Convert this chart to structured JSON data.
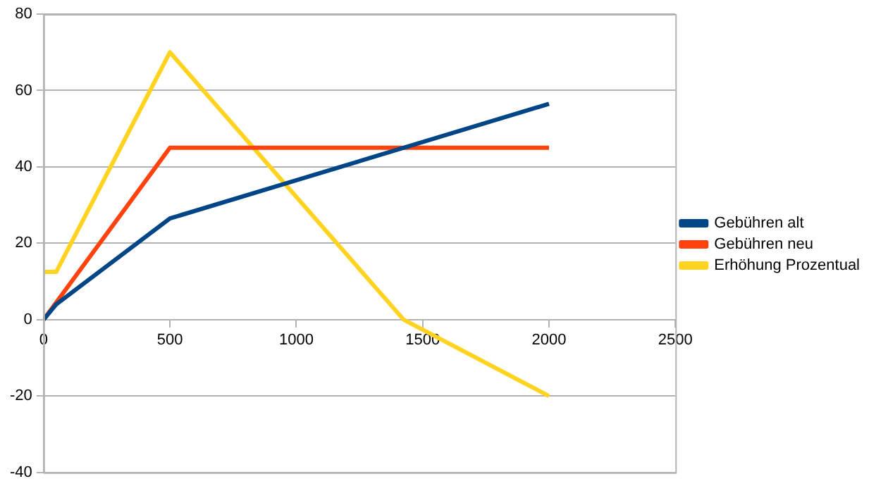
{
  "chart_data": {
    "type": "line",
    "xlim": [
      0,
      2500
    ],
    "xticks": [
      0,
      500,
      1000,
      1500,
      2000,
      2500
    ],
    "ylim": [
      -40,
      80
    ],
    "yticks": [
      -40,
      -20,
      0,
      20,
      40,
      60,
      80
    ],
    "grid": "y",
    "legend": "right",
    "marker": "none",
    "line_style": "solid",
    "series": [
      {
        "name": "Gebühren alt",
        "color": "#004586",
        "x": [
          0,
          50,
          500,
          2000
        ],
        "values": [
          0,
          4,
          26.5,
          56.5
        ]
      },
      {
        "name": "Gebühren neu",
        "color": "#ff420e",
        "x": [
          0,
          50,
          500,
          2000
        ],
        "values": [
          0,
          4.5,
          45,
          45
        ]
      },
      {
        "name": "Erhöhung Prozentual",
        "color": "#ffd320",
        "x": [
          0,
          50,
          500,
          1425,
          2000
        ],
        "values": [
          12.5,
          12.5,
          70,
          0,
          -20
        ]
      }
    ]
  }
}
